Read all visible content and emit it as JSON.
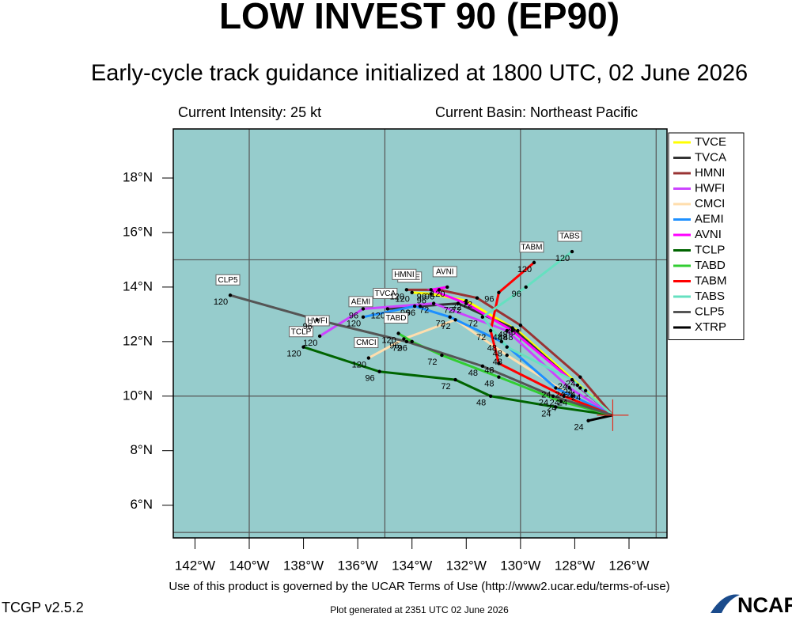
{
  "chart_data": {
    "type": "track",
    "title": "LOW INVEST 90 (EP90)",
    "subtitle": "Early-cycle track guidance initialized at 1800 UTC, 02 June 2026",
    "intensity": "Current Intensity: 25 kt",
    "basin": "Current Basin: Northeast Pacific",
    "terms": "Use of this product is governed by the UCAR Terms of Use (http://www2.ucar.edu/terms-of-use)",
    "version": "TCGP v2.5.2",
    "generated": "Plot generated at 2351 UTC   02 June 2026",
    "logo": "NCAR",
    "xlim": [
      -142.8,
      -124.6
    ],
    "ylim": [
      4.8,
      19.8
    ],
    "xticks": [
      {
        "value": -142,
        "label": "142°W"
      },
      {
        "value": -140,
        "label": "140°W"
      },
      {
        "value": -138,
        "label": "138°W"
      },
      {
        "value": -136,
        "label": "136°W"
      },
      {
        "value": -134,
        "label": "134°W"
      },
      {
        "value": -132,
        "label": "132°W"
      },
      {
        "value": -130,
        "label": "130°W"
      },
      {
        "value": -128,
        "label": "128°W"
      },
      {
        "value": -126,
        "label": "126°W"
      }
    ],
    "yticks": [
      {
        "value": 6,
        "label": "6°N"
      },
      {
        "value": 8,
        "label": "8°N"
      },
      {
        "value": 10,
        "label": "10°N"
      },
      {
        "value": 12,
        "label": "12°N"
      },
      {
        "value": 14,
        "label": "14°N"
      },
      {
        "value": 16,
        "label": "16°N"
      },
      {
        "value": 18,
        "label": "18°N"
      }
    ],
    "graticule": {
      "lons": [
        -140,
        -135,
        -130,
        -125
      ],
      "lats": [
        5,
        10,
        15
      ]
    },
    "background": "#96cccc",
    "legend": "right",
    "initial": {
      "lon": -126.6,
      "lat": 9.3
    },
    "hours": [
      24,
      48,
      72,
      96,
      120
    ],
    "series": [
      {
        "name": "TVCE",
        "color": "#ffff00",
        "x": [
          -127.6,
          -130.1,
          -132.0,
          -133.3,
          -134.0
        ],
        "y": [
          10.2,
          12.4,
          13.5,
          13.75,
          13.8
        ]
      },
      {
        "name": "TVCA",
        "color": "#333333",
        "x": [
          -127.8,
          -130.3,
          -132.3,
          -133.7,
          -134.9
        ],
        "y": [
          10.3,
          12.5,
          13.4,
          13.3,
          13.2
        ]
      },
      {
        "name": "HMNI",
        "color": "#993333",
        "x": [
          -127.8,
          -130.0,
          -131.6,
          -133.0,
          -134.2
        ],
        "y": [
          10.7,
          12.6,
          13.6,
          13.9,
          13.9
        ]
      },
      {
        "name": "HWFI",
        "color": "#cc44ff",
        "x": [
          -128.2,
          -130.5,
          -133.2,
          -135.8,
          -137.4
        ],
        "y": [
          10.3,
          12.4,
          13.4,
          13.2,
          12.2
        ]
      },
      {
        "name": "CMCI",
        "color": "#ffdead",
        "x": [
          -128.1,
          -130.5,
          -132.4,
          -134.3,
          -135.6
        ],
        "y": [
          10.0,
          11.5,
          12.8,
          12.1,
          11.4
        ]
      },
      {
        "name": "AEMI",
        "color": "#1e90ff",
        "x": [
          -128.7,
          -130.7,
          -132.6,
          -133.9,
          -135.8
        ],
        "y": [
          10.3,
          12.0,
          12.9,
          13.3,
          12.9
        ]
      },
      {
        "name": "AVNI",
        "color": "#ff00ff",
        "x": [
          -127.9,
          -130.3,
          -132.0,
          -133.3,
          -132.7
        ],
        "y": [
          10.4,
          12.4,
          13.4,
          13.9,
          14.0
        ]
      },
      {
        "name": "TCLP",
        "color": "#006400",
        "x": [
          -128.7,
          -131.1,
          -132.4,
          -135.2,
          -138.0
        ],
        "y": [
          9.6,
          10.0,
          10.6,
          10.9,
          11.8
        ]
      },
      {
        "name": "TABD",
        "color": "#32cd32",
        "x": [
          -128.5,
          -130.8,
          -132.9,
          -134.0,
          -134.5
        ],
        "y": [
          9.8,
          10.7,
          11.5,
          12.0,
          12.3
        ]
      },
      {
        "name": "TABM",
        "color": "#ff0000",
        "x": [
          -128.4,
          -130.8,
          -131.1,
          -130.8,
          -129.5
        ],
        "y": [
          10.0,
          11.2,
          12.4,
          13.8,
          14.9
        ]
      },
      {
        "name": "TABS",
        "color": "#66e0c0",
        "x": [
          -128.1,
          -130.5,
          -131.4,
          -129.8,
          -128.1
        ],
        "y": [
          10.6,
          11.8,
          12.9,
          14.0,
          15.3
        ]
      },
      {
        "name": "CLP5",
        "color": "#555555",
        "x": [
          -128.8,
          -131.4,
          -134.2,
          -137.5,
          -140.7
        ],
        "y": [
          10.0,
          11.1,
          12.0,
          12.8,
          13.7
        ]
      },
      {
        "name": "XTRP",
        "color": "#000000",
        "x": [
          -127.5
        ],
        "y": [
          9.1
        ]
      }
    ]
  }
}
